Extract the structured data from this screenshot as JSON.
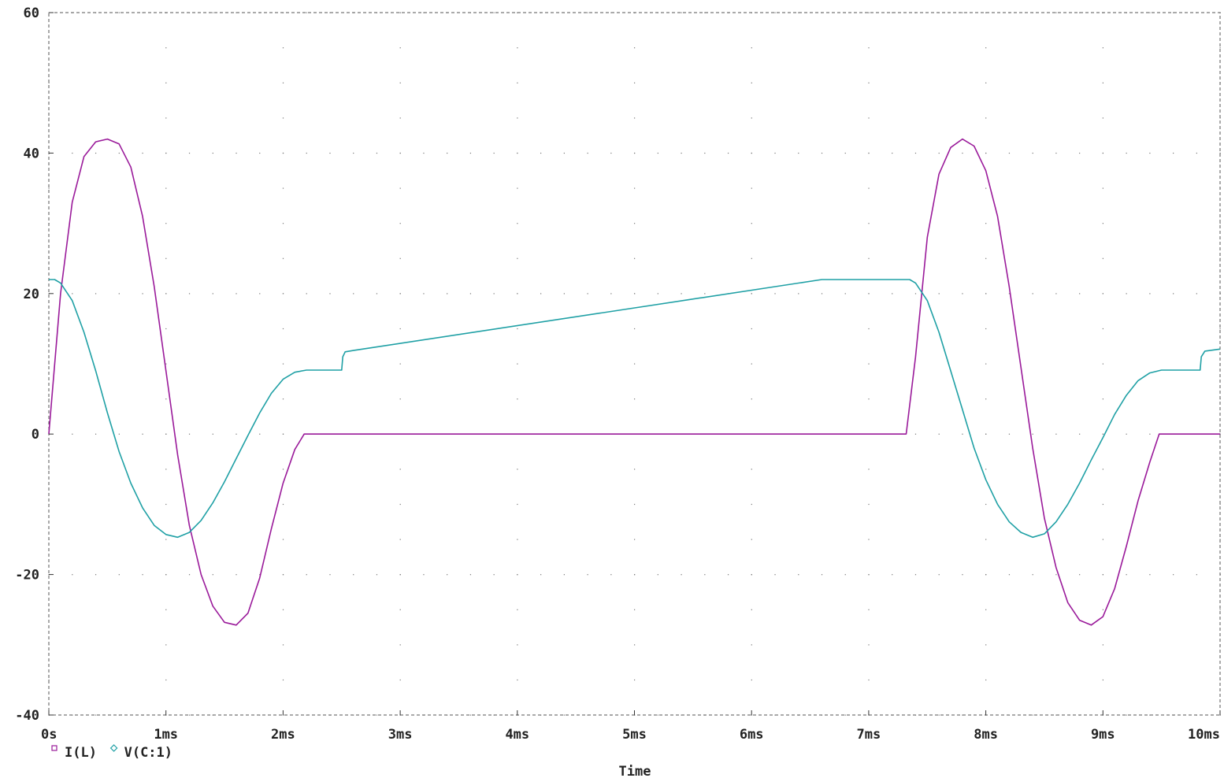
{
  "chart_data": {
    "type": "line",
    "xlabel": "Time",
    "ylabel": "",
    "xlim": [
      0,
      10
    ],
    "ylim": [
      -40,
      60
    ],
    "x_ticks": [
      0,
      1,
      2,
      3,
      4,
      5,
      6,
      7,
      8,
      9,
      10
    ],
    "x_tick_labels": [
      "0s",
      "1ms",
      "2ms",
      "3ms",
      "4ms",
      "5ms",
      "6ms",
      "7ms",
      "8ms",
      "9ms",
      "10ms"
    ],
    "y_ticks": [
      -40,
      -20,
      0,
      20,
      40,
      60
    ],
    "y_tick_labels": [
      "-40",
      "-20",
      "0",
      "20",
      "40",
      "60"
    ],
    "grid": "dotted",
    "legend_position": "bottom-left",
    "series": [
      {
        "name": "I(L)",
        "color": "#9a1a9a",
        "marker": "square",
        "points": [
          [
            0,
            0
          ],
          [
            0.1,
            20
          ],
          [
            0.2,
            33
          ],
          [
            0.3,
            39.5
          ],
          [
            0.4,
            41.6
          ],
          [
            0.5,
            42
          ],
          [
            0.6,
            41.3
          ],
          [
            0.7,
            38
          ],
          [
            0.8,
            31
          ],
          [
            0.9,
            21
          ],
          [
            1.0,
            9
          ],
          [
            1.1,
            -3
          ],
          [
            1.2,
            -13
          ],
          [
            1.3,
            -20
          ],
          [
            1.4,
            -24.5
          ],
          [
            1.5,
            -26.8
          ],
          [
            1.6,
            -27.2
          ],
          [
            1.7,
            -25.5
          ],
          [
            1.8,
            -20.5
          ],
          [
            1.9,
            -13.5
          ],
          [
            2.0,
            -7
          ],
          [
            2.1,
            -2.2
          ],
          [
            2.18,
            0
          ],
          [
            7.32,
            0
          ],
          [
            7.4,
            11
          ],
          [
            7.5,
            28
          ],
          [
            7.6,
            37
          ],
          [
            7.7,
            40.8
          ],
          [
            7.8,
            42
          ],
          [
            7.9,
            41
          ],
          [
            8.0,
            37.5
          ],
          [
            8.1,
            31
          ],
          [
            8.2,
            21
          ],
          [
            8.3,
            9.5
          ],
          [
            8.4,
            -2
          ],
          [
            8.5,
            -12
          ],
          [
            8.6,
            -19
          ],
          [
            8.7,
            -24
          ],
          [
            8.8,
            -26.5
          ],
          [
            8.9,
            -27.2
          ],
          [
            9.0,
            -26
          ],
          [
            9.1,
            -22
          ],
          [
            9.2,
            -16
          ],
          [
            9.3,
            -9.5
          ],
          [
            9.4,
            -4
          ],
          [
            9.48,
            0
          ],
          [
            10.0,
            0
          ]
        ]
      },
      {
        "name": "V(C:1)",
        "color": "#1fa0a5",
        "marker": "diamond",
        "points": [
          [
            0,
            22
          ],
          [
            0.05,
            22
          ],
          [
            0.1,
            21.5
          ],
          [
            0.2,
            19
          ],
          [
            0.3,
            14.5
          ],
          [
            0.4,
            9
          ],
          [
            0.5,
            3
          ],
          [
            0.6,
            -2.5
          ],
          [
            0.7,
            -7
          ],
          [
            0.8,
            -10.5
          ],
          [
            0.9,
            -13
          ],
          [
            1.0,
            -14.3
          ],
          [
            1.1,
            -14.7
          ],
          [
            1.2,
            -14
          ],
          [
            1.3,
            -12.3
          ],
          [
            1.4,
            -9.8
          ],
          [
            1.5,
            -6.8
          ],
          [
            1.6,
            -3.5
          ],
          [
            1.7,
            -0.2
          ],
          [
            1.8,
            3
          ],
          [
            1.9,
            5.8
          ],
          [
            2.0,
            7.8
          ],
          [
            2.1,
            8.8
          ],
          [
            2.2,
            9.1
          ],
          [
            2.5,
            9.1
          ],
          [
            2.51,
            11
          ],
          [
            2.53,
            11.7
          ],
          [
            2.6,
            11.9
          ],
          [
            6.6,
            22
          ],
          [
            7.35,
            22
          ],
          [
            7.4,
            21.5
          ],
          [
            7.5,
            19
          ],
          [
            7.6,
            14.5
          ],
          [
            7.7,
            9
          ],
          [
            7.8,
            3.5
          ],
          [
            7.9,
            -2
          ],
          [
            8.0,
            -6.5
          ],
          [
            8.1,
            -10
          ],
          [
            8.2,
            -12.5
          ],
          [
            8.3,
            -14
          ],
          [
            8.4,
            -14.7
          ],
          [
            8.5,
            -14.2
          ],
          [
            8.6,
            -12.5
          ],
          [
            8.7,
            -10
          ],
          [
            8.8,
            -7
          ],
          [
            8.9,
            -3.7
          ],
          [
            9.0,
            -0.5
          ],
          [
            9.1,
            2.8
          ],
          [
            9.2,
            5.5
          ],
          [
            9.3,
            7.6
          ],
          [
            9.4,
            8.7
          ],
          [
            9.5,
            9.1
          ],
          [
            9.83,
            9.1
          ],
          [
            9.84,
            11
          ],
          [
            9.87,
            11.8
          ],
          [
            10.0,
            12.1
          ]
        ]
      }
    ]
  }
}
